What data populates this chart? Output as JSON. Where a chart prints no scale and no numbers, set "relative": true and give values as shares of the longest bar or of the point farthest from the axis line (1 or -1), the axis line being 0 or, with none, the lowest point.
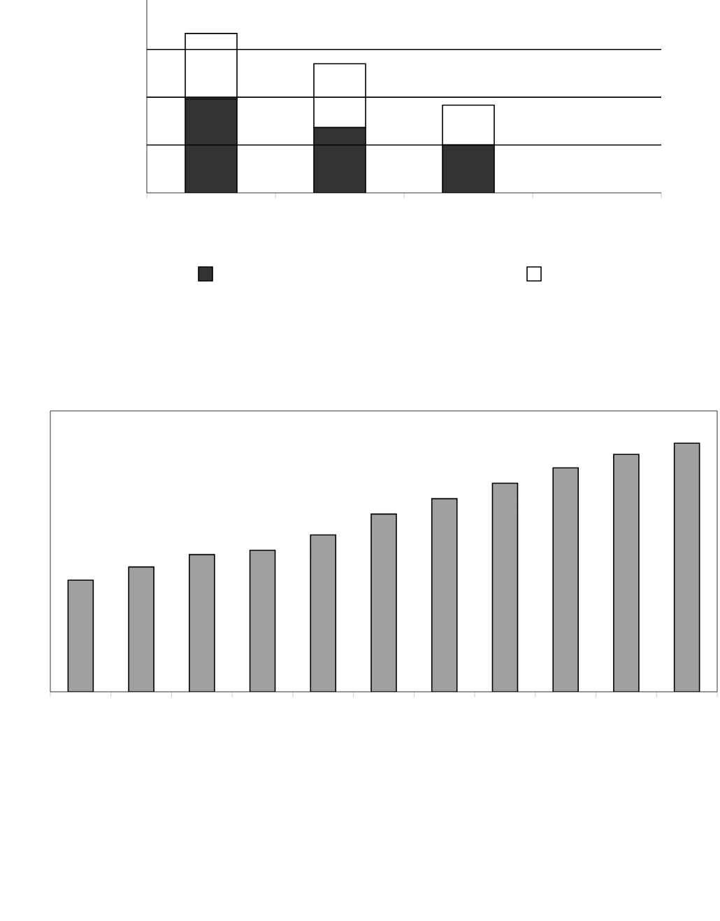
{
  "chart_data": [
    {
      "type": "bar",
      "relative": true,
      "stacked": true,
      "categories": [
        null,
        null,
        null
      ],
      "ref_lines": [
        {
          "axis": "y",
          "value": 0.3
        },
        {
          "axis": "y",
          "value": 0.6
        },
        {
          "axis": "y",
          "value": 0.9
        }
      ],
      "series": [
        {
          "color": "#333333",
          "values": [
            0.59,
            0.41,
            0.3
          ]
        },
        {
          "color": "#ffffff",
          "values": [
            0.41,
            0.4,
            0.25
          ]
        }
      ]
    },
    {
      "type": "bar",
      "relative": true,
      "categories": [
        null,
        null,
        null,
        null,
        null,
        null,
        null,
        null,
        null,
        null,
        null
      ],
      "series": [
        {
          "color": "#a0a0a0",
          "values": [
            0.449,
            0.502,
            0.552,
            0.569,
            0.631,
            0.715,
            0.777,
            0.839,
            0.901,
            0.955,
            1
          ]
        }
      ]
    }
  ]
}
